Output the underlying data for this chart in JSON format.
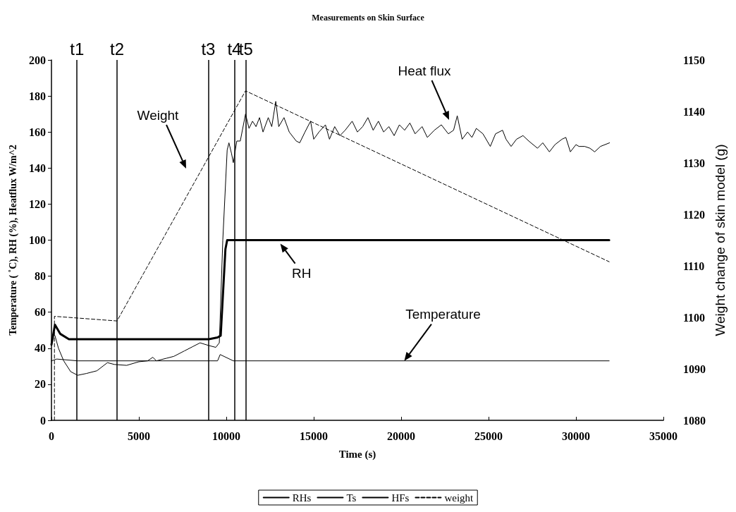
{
  "chart_data": {
    "type": "line",
    "title": "Measurements on Skin Surface",
    "xlabel": "Time (s)",
    "ylabel": "Temperature ( ˚C), RH (%), Heatflux W/m^2",
    "y2label": "Weight change of skin model (g)",
    "xlim": [
      0,
      35000
    ],
    "xticks": [
      0,
      {
        "value": 5000,
        "label": "5000"
      },
      {
        "value": 10000,
        "label": "10000"
      },
      {
        "value": 15000,
        "label": "15000"
      },
      {
        "value": 20000,
        "label": "20000"
      },
      {
        "value": 25000,
        "label": "25000"
      },
      {
        "value": 30000,
        "label": "30000"
      },
      {
        "value": 35000,
        "label": "35000"
      }
    ],
    "ylim": [
      0,
      200
    ],
    "yticks": [
      0,
      20,
      40,
      60,
      80,
      100,
      120,
      140,
      160,
      180,
      200
    ],
    "y2lim": [
      1080,
      1150
    ],
    "y2ticks": [
      {
        "value": 1080,
        "label": "1080"
      },
      {
        "value": 1090,
        "label": "1090"
      },
      {
        "value": 1100,
        "label": "1100"
      },
      {
        "value": 1110,
        "label": "1110"
      },
      {
        "value": 1120,
        "label": "1120"
      },
      {
        "value": 1130,
        "label": "1130"
      },
      {
        "value": 1140,
        "label": "1140"
      },
      {
        "value": 1150,
        "label": "1150"
      }
    ],
    "grid": false,
    "legend": "bottom",
    "marker": "none",
    "series": [
      {
        "name": "RHs",
        "color": "#000000",
        "line_style": "solid",
        "x": [
          0,
          200,
          500,
          1000,
          9000,
          9500,
          9680,
          9950,
          10050,
          31900
        ],
        "values": [
          42,
          53,
          48,
          45,
          45,
          46,
          47,
          95,
          100,
          100
        ]
      },
      {
        "name": "Ts",
        "color": "#000000",
        "line_style": "solid",
        "x": [
          0,
          300,
          1500,
          9500,
          9650,
          10400,
          15000,
          20000,
          25000,
          31900
        ],
        "values": [
          33,
          34,
          33,
          33,
          36.5,
          33,
          33,
          33,
          33,
          33
        ]
      },
      {
        "name": "HFs",
        "color": "#000000",
        "line_style": "solid",
        "x": [
          200,
          400,
          700,
          1100,
          1500,
          2000,
          2600,
          3200,
          3600,
          4300,
          5000,
          5500,
          5800,
          6000,
          6600,
          7000,
          7600,
          8100,
          8500,
          9000,
          9400,
          9600,
          9800,
          10050,
          10150,
          10300,
          10400,
          10600,
          10800,
          11100,
          11300,
          11500,
          11700,
          11900,
          12100,
          12400,
          12600,
          12830,
          13000,
          13300,
          13600,
          14000,
          14200,
          14500,
          14820,
          15000,
          15300,
          15670,
          15900,
          16200,
          16500,
          16800,
          17200,
          17500,
          17800,
          18100,
          18400,
          18700,
          19000,
          19300,
          19600,
          19900,
          20200,
          20500,
          20800,
          21200,
          21500,
          21900,
          22300,
          22700,
          23000,
          23210,
          23490,
          23800,
          24050,
          24300,
          24680,
          25100,
          25400,
          25800,
          26000,
          26290,
          26600,
          26970,
          27300,
          27800,
          28100,
          28480,
          28800,
          29200,
          29420,
          29680,
          30000,
          30170,
          30500,
          30800,
          31070,
          31400,
          31920
        ],
        "values": [
          47,
          40,
          33,
          27,
          25,
          26,
          27.5,
          32,
          31,
          30.5,
          32.5,
          33,
          35,
          33,
          34.5,
          35.5,
          38.5,
          41,
          43,
          41.5,
          40.5,
          43,
          100,
          150,
          154,
          148,
          143,
          155,
          155,
          170,
          162,
          166,
          163,
          168,
          160,
          168,
          163,
          177,
          163,
          168,
          160,
          155,
          154,
          160,
          166,
          156,
          160,
          164,
          156,
          163,
          158,
          161,
          166,
          160,
          163,
          168,
          161,
          166,
          160,
          163,
          158,
          164,
          161,
          165,
          159,
          163,
          157,
          161,
          164,
          159,
          161,
          169,
          156,
          160,
          157,
          162,
          159,
          152,
          159,
          161,
          156,
          152,
          156,
          158,
          155,
          151,
          154,
          149,
          153,
          156,
          157,
          149,
          153,
          152,
          152,
          151,
          149,
          152,
          154
        ]
      },
      {
        "name": "weight",
        "color": "#000000",
        "line_style": "dashed",
        "axis": "y2",
        "x": [
          170,
          170,
          3750,
          11100,
          31900
        ],
        "values": [
          1080,
          1100.2,
          1099.3,
          1144,
          1110.8
        ]
      }
    ],
    "ref_lines": [
      {
        "axis": "x",
        "value": 1460,
        "label": "t1",
        "color": "#000000"
      },
      {
        "axis": "x",
        "value": 3750,
        "label": "t2",
        "color": "#000000"
      },
      {
        "axis": "x",
        "value": 8970,
        "label": "t3",
        "color": "#000000"
      },
      {
        "axis": "x",
        "value": 10460,
        "label": "t4",
        "color": "#000000"
      },
      {
        "axis": "x",
        "value": 11120,
        "label": "t5",
        "color": "#000000"
      }
    ],
    "annotations": [
      "Weight",
      "Heat flux",
      {
        "text": "RH",
        "x": 13090,
        "y": 98
      },
      {
        "text": "Temperature",
        "x": 20180,
        "y": 33
      }
    ]
  }
}
